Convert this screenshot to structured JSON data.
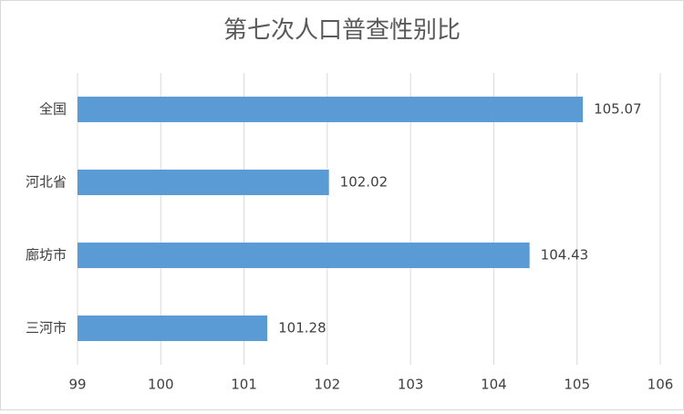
{
  "chart_data": {
    "type": "bar",
    "orientation": "horizontal",
    "title": "第七次人口普查性别比",
    "categories": [
      "全国",
      "河北省",
      "廊坊市",
      "三河市"
    ],
    "values": [
      105.07,
      102.02,
      104.43,
      101.28
    ],
    "color": "#5b9bd5",
    "xlim": [
      99,
      106
    ],
    "xticks": [
      99,
      100,
      101,
      102,
      103,
      104,
      105,
      106
    ],
    "grid": true,
    "data_labels": true
  }
}
